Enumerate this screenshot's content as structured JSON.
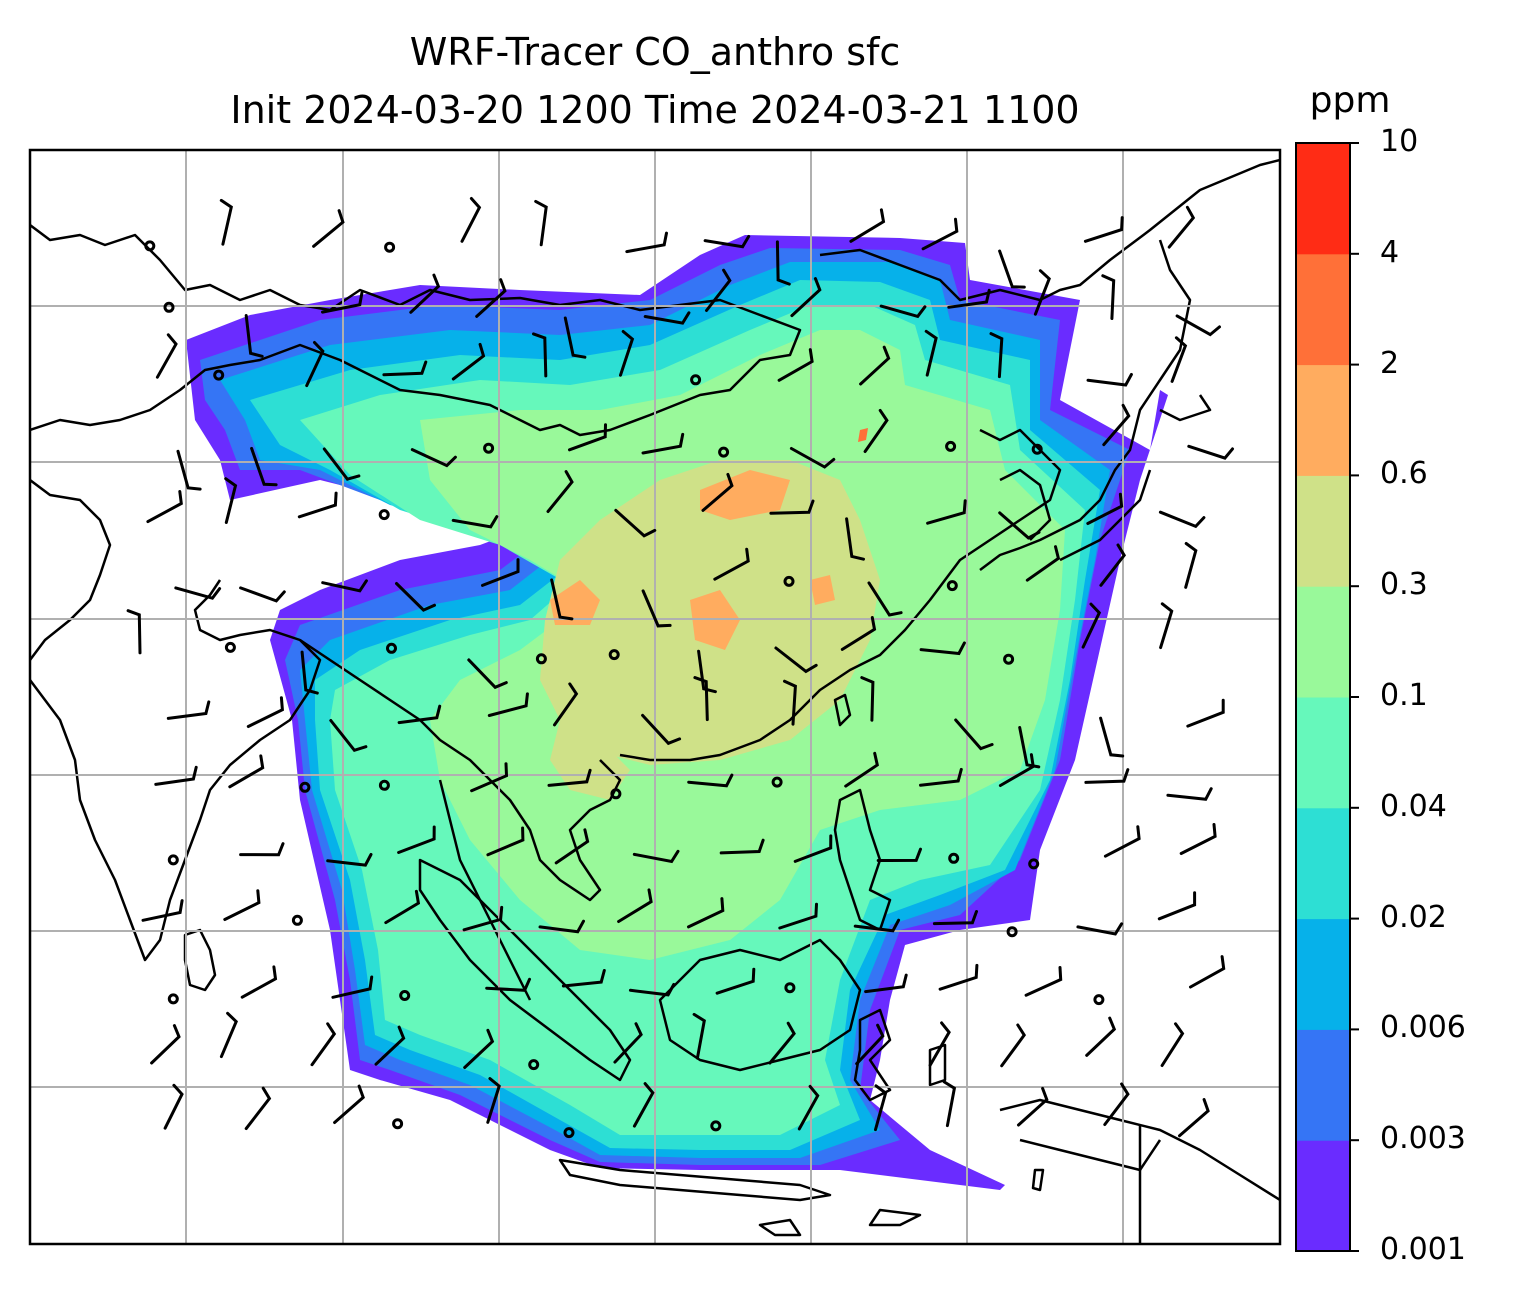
{
  "title": {
    "line1": "WRF-Tracer CO_anthro sfc",
    "line2": "Init 2024-03-20 1200 Time 2024-03-21 1100"
  },
  "colorbar": {
    "unit": "ppm",
    "tick_labels": [
      "0.001",
      "0.003",
      "0.006",
      "0.02",
      "0.04",
      "0.1",
      "0.3",
      "0.6",
      "2",
      "4",
      "10"
    ],
    "colors": [
      "#6a2cff",
      "#3575f5",
      "#06b1ea",
      "#2ddfd4",
      "#66f8bb",
      "#99f99a",
      "#cfe188",
      "#ffac5f",
      "#ff7038",
      "#ff2c15"
    ]
  },
  "map": {
    "gridlines": true,
    "background": "#ffffff",
    "coastline_color": "#000000",
    "gridline_color": "#b0b0b0",
    "wind_barb_color": "#000000"
  }
}
